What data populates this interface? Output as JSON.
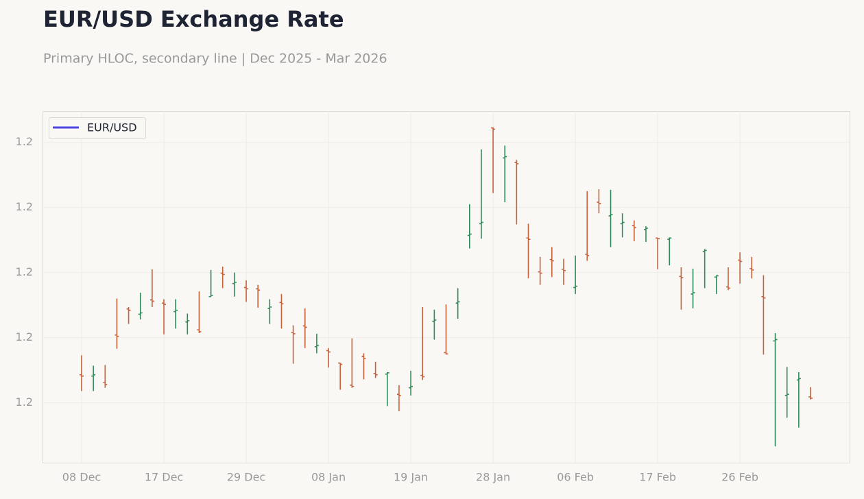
{
  "chart_data": {
    "type": "ohlc",
    "title": "EUR/USD Exchange Rate",
    "subtitle": "Primary HLOC, secondary line | Dec 2025 - Mar 2026",
    "categories": [
      "08 Dec",
      null,
      null,
      null,
      null,
      null,
      null,
      "17 Dec",
      null,
      null,
      null,
      null,
      null,
      null,
      "29 Dec",
      null,
      null,
      null,
      null,
      null,
      null,
      "08 Jan",
      null,
      null,
      null,
      null,
      null,
      null,
      "19 Jan",
      null,
      null,
      null,
      null,
      null,
      null,
      "28 Jan",
      null,
      null,
      null,
      null,
      null,
      null,
      "06 Feb",
      null,
      null,
      null,
      null,
      null,
      null,
      "17 Feb",
      null,
      null,
      null,
      null,
      null,
      null,
      "26 Feb",
      null,
      null,
      null,
      null,
      null,
      null
    ],
    "series": [
      {
        "name": "EUR/USD",
        "color": "#4f46e5",
        "open": [
          1.1643,
          1.1641,
          1.1631,
          1.1704,
          1.1744,
          1.1736,
          1.1758,
          1.1753,
          1.174,
          1.1724,
          1.1712,
          1.1763,
          1.1799,
          1.1783,
          1.1777,
          1.1775,
          1.1745,
          1.1754,
          1.1708,
          1.1718,
          1.1686,
          1.168,
          1.1661,
          1.1627,
          1.1671,
          1.1645,
          1.1644,
          1.1613,
          1.1623,
          1.1642,
          1.1725,
          1.1677,
          1.1753,
          1.1857,
          1.1875,
          1.2022,
          1.1976,
          1.1969,
          1.1853,
          1.1801,
          1.182,
          1.1805,
          1.1777,
          1.1828,
          1.1908,
          1.1887,
          1.1875,
          1.1872,
          1.1866,
          1.1853,
          1.1851,
          1.1794,
          1.1767,
          1.1832,
          1.1793,
          1.1778,
          1.1819,
          1.1806,
          1.1763,
          1.1695,
          1.1611,
          1.1635,
          1.1609
        ],
        "high": [
          1.1673,
          1.1657,
          1.1658,
          1.176,
          1.1747,
          1.1769,
          1.1805,
          1.1759,
          1.1759,
          1.1737,
          1.1771,
          1.1804,
          1.1809,
          1.18,
          1.1788,
          1.1781,
          1.1759,
          1.1767,
          1.1719,
          1.1745,
          1.1706,
          1.1684,
          1.1661,
          1.1699,
          1.1676,
          1.1663,
          1.1647,
          1.1627,
          1.1649,
          1.1747,
          1.1743,
          1.1751,
          1.1776,
          1.1905,
          1.1989,
          1.2023,
          1.1995,
          1.1973,
          1.1875,
          1.1824,
          1.1839,
          1.1821,
          1.1826,
          1.1925,
          1.1928,
          1.1927,
          1.1891,
          1.188,
          1.1871,
          1.1853,
          1.1854,
          1.1808,
          1.1806,
          1.1836,
          1.1796,
          1.1808,
          1.1831,
          1.1824,
          1.1796,
          1.1707,
          1.1655,
          1.1647,
          1.1624
        ],
        "low": [
          1.1618,
          1.1618,
          1.1623,
          1.1683,
          1.1721,
          1.1728,
          1.1747,
          1.1705,
          1.1714,
          1.1705,
          1.1707,
          1.1763,
          1.1776,
          1.1763,
          1.1755,
          1.1746,
          1.1721,
          1.1714,
          1.166,
          1.1684,
          1.1676,
          1.1654,
          1.162,
          1.1623,
          1.1636,
          1.1638,
          1.1595,
          1.1587,
          1.1611,
          1.1635,
          1.1697,
          1.1674,
          1.1729,
          1.1837,
          1.1852,
          1.1922,
          1.1908,
          1.1874,
          1.1791,
          1.1781,
          1.1793,
          1.1781,
          1.1767,
          1.1818,
          1.1891,
          1.1839,
          1.1854,
          1.1848,
          1.1847,
          1.1805,
          1.1811,
          1.1743,
          1.1745,
          1.1776,
          1.1767,
          1.1773,
          1.1783,
          1.1791,
          1.1674,
          1.1533,
          1.1577,
          1.1562,
          1.1605
        ],
        "close": [
          1.1641,
          1.1643,
          1.1628,
          1.1702,
          1.1742,
          1.1738,
          1.1756,
          1.1751,
          1.1742,
          1.1726,
          1.1709,
          1.1765,
          1.1797,
          1.1785,
          1.1775,
          1.1773,
          1.1747,
          1.1752,
          1.1706,
          1.1716,
          1.1688,
          1.1678,
          1.1659,
          1.1625,
          1.1668,
          1.1643,
          1.1646,
          1.1611,
          1.1625,
          1.164,
          1.1727,
          1.1675,
          1.1755,
          1.1859,
          1.1877,
          1.202,
          1.1978,
          1.1967,
          1.1851,
          1.1799,
          1.1818,
          1.1803,
          1.1779,
          1.1826,
          1.1906,
          1.1889,
          1.1877,
          1.1869,
          1.1868,
          1.1852,
          1.1853,
          1.1792,
          1.1769,
          1.1834,
          1.1795,
          1.1776,
          1.1817,
          1.1804,
          1.1761,
          1.1697,
          1.1613,
          1.1637,
          1.1607
        ]
      }
    ],
    "up_color": "#2e8b57",
    "down_color": "#c8603a",
    "ylim": [
      1.1508,
      1.2048
    ],
    "yticks": [
      1.2,
      {
        "value": 1.19,
        "label": "1.2"
      },
      {
        "value": 1.18,
        "label": "1.2"
      },
      {
        "value": 1.17,
        "label": "1.2"
      },
      {
        "value": 1.16,
        "label": "1.2"
      }
    ],
    "grid": true,
    "legend": "upper left"
  }
}
